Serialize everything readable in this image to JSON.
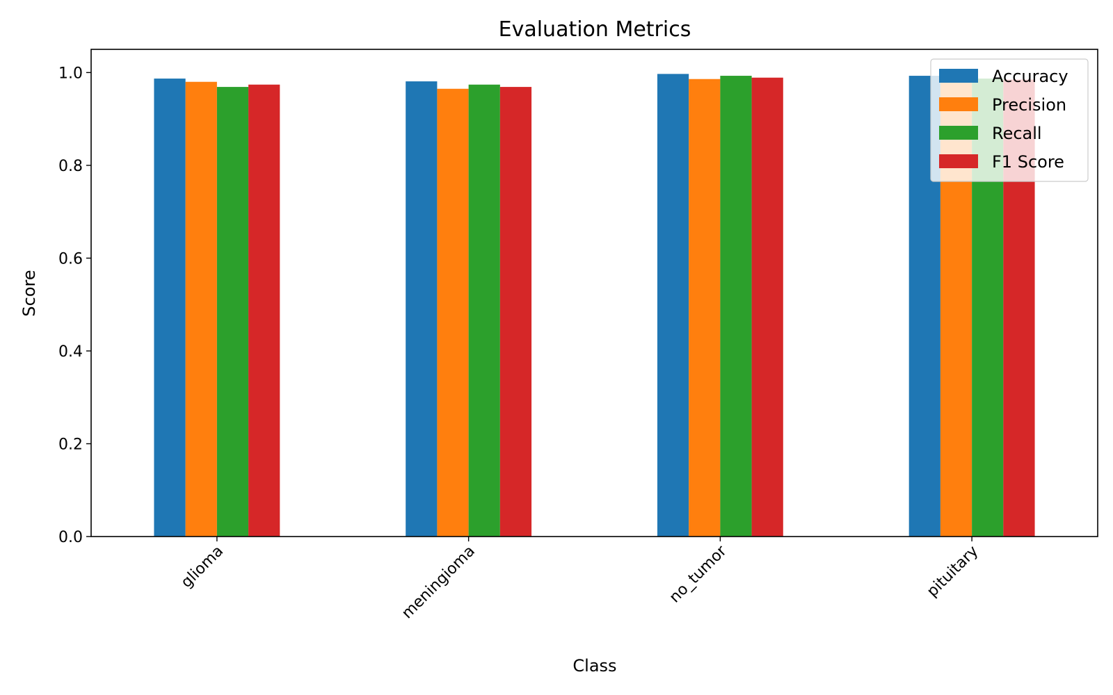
{
  "chart_data": {
    "type": "bar",
    "title": "Evaluation Metrics",
    "xlabel": "Class",
    "ylabel": "Score",
    "categories": [
      "glioma",
      "meningioma",
      "no_tumor",
      "pituitary"
    ],
    "series": [
      {
        "name": "Accuracy",
        "color": "#1f77b4",
        "values": [
          0.987,
          0.981,
          0.997,
          0.993
        ]
      },
      {
        "name": "Precision",
        "color": "#ff7f0e",
        "values": [
          0.98,
          0.965,
          0.986,
          0.983
        ]
      },
      {
        "name": "Recall",
        "color": "#2ca02c",
        "values": [
          0.969,
          0.974,
          0.993,
          0.987
        ]
      },
      {
        "name": "F1 Score",
        "color": "#d62728",
        "values": [
          0.974,
          0.969,
          0.989,
          0.985
        ]
      }
    ],
    "ylim": [
      0,
      1.05
    ],
    "yticks": [
      0.0,
      0.2,
      0.4,
      0.6,
      0.8,
      1.0
    ],
    "ytick_labels": [
      "0.0",
      "0.2",
      "0.4",
      "0.6",
      "0.8",
      "1.0"
    ],
    "grid": false,
    "legend_position": "top-right"
  }
}
